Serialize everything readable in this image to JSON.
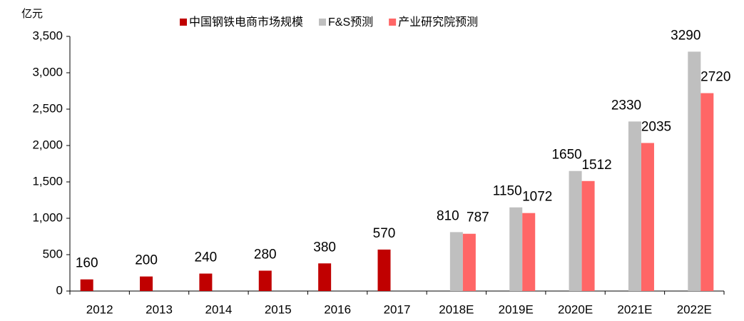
{
  "chart_data": {
    "type": "bar",
    "y_unit": "亿元",
    "categories": [
      "2012",
      "2013",
      "2014",
      "2015",
      "2016",
      "2017",
      "2018E",
      "2019E",
      "2020E",
      "2021E",
      "2022E"
    ],
    "series": [
      {
        "name": "中国钢铁电商市场规模",
        "color": "#C00000",
        "values": [
          160,
          200,
          240,
          280,
          380,
          570,
          null,
          null,
          null,
          null,
          null
        ]
      },
      {
        "name": "F&S预测",
        "color": "#BFBFBF",
        "values": [
          null,
          null,
          null,
          null,
          null,
          null,
          810,
          1150,
          1650,
          2330,
          3290
        ]
      },
      {
        "name": "产业研究院预测",
        "color": "#FF6666",
        "values": [
          null,
          null,
          null,
          null,
          null,
          null,
          787,
          1072,
          1512,
          2035,
          2720
        ]
      }
    ],
    "ylim": [
      0,
      3500
    ],
    "yticks": [
      0,
      500,
      {
        "value": 1000,
        "label": "1,000"
      },
      {
        "value": 1500,
        "label": "1,500"
      },
      {
        "value": 2000,
        "label": "2,000"
      },
      {
        "value": 2500,
        "label": "2,500"
      },
      {
        "value": 3000,
        "label": "3,000"
      },
      {
        "value": 3500,
        "label": "3,500"
      }
    ]
  }
}
